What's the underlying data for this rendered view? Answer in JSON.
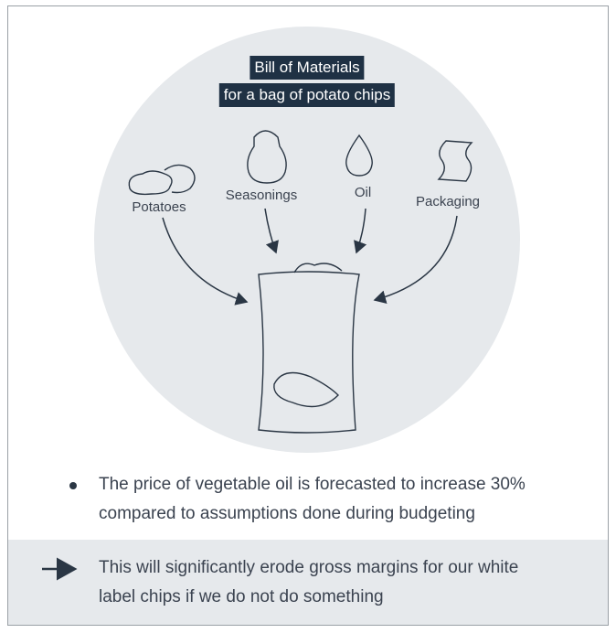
{
  "title": {
    "lines": [
      "Bill of Materials",
      "for a bag of potato chips"
    ]
  },
  "inputs": [
    {
      "label": "Potatoes"
    },
    {
      "label": "Seasonings"
    },
    {
      "label": "Oil"
    },
    {
      "label": "Packaging"
    }
  ],
  "bullet": {
    "lines": [
      "The price of vegetable oil is forecasted to increase 30%",
      "compared to assumptions done during budgeting"
    ]
  },
  "conclusion": {
    "lines": [
      "This will significantly erode gross margins for our white",
      "label chips if we do not do something"
    ]
  }
}
